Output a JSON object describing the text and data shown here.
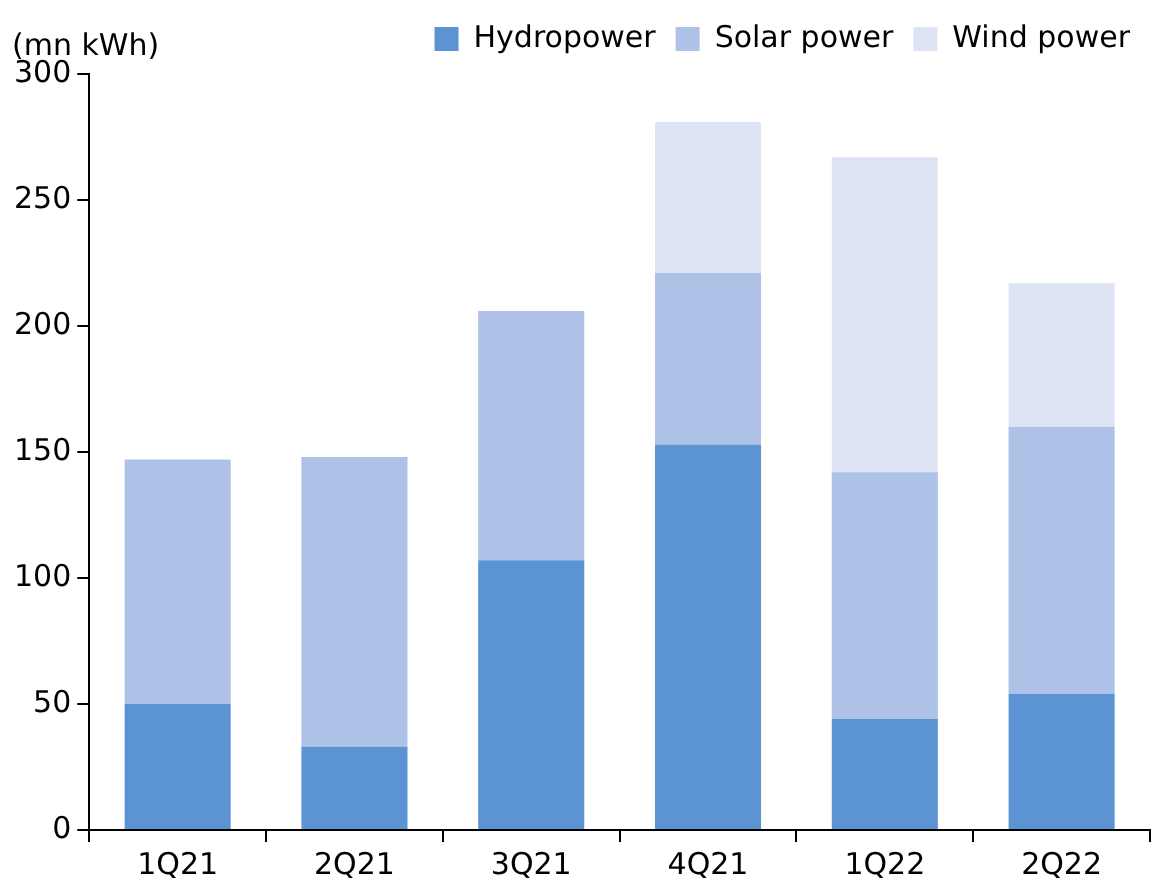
{
  "chart_data": {
    "type": "bar",
    "stacked": true,
    "ylabel": "(mn kWh)",
    "categories": [
      "1Q21",
      "2Q21",
      "3Q21",
      "4Q21",
      "1Q22",
      "2Q22"
    ],
    "series": [
      {
        "name": "Hydropower",
        "color": "#5b93d3",
        "values": [
          50,
          33,
          107,
          153,
          44,
          54
        ]
      },
      {
        "name": "Solar power",
        "color": "#adc2e6",
        "values": [
          97,
          115,
          99,
          68,
          98,
          106
        ]
      },
      {
        "name": "Wind power",
        "color": "#dde5f5",
        "values": [
          null,
          null,
          null,
          60,
          125,
          57
        ]
      }
    ],
    "ylim": [
      0,
      300
    ],
    "yticks": [
      0,
      50,
      100,
      150,
      200,
      250,
      300
    ],
    "grid": false,
    "legend": "top"
  }
}
